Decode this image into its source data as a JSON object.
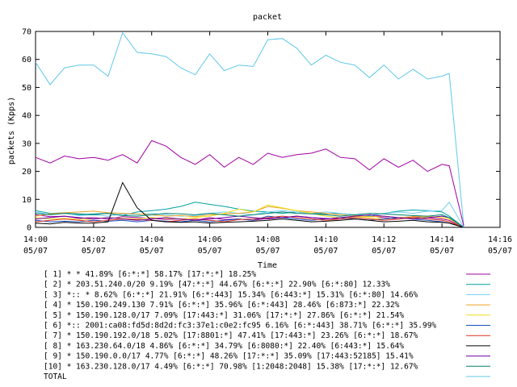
{
  "chart_data": {
    "type": "line",
    "title": "packet",
    "xlabel": "Time",
    "ylabel": "packets (Kpps)",
    "ylim": [
      0,
      70
    ],
    "y_ticks": [
      "0",
      "10",
      "20",
      "30",
      "40",
      "50",
      "60",
      "70"
    ],
    "x_ticks": [
      {
        "time": "14:00",
        "date": "05/07"
      },
      {
        "time": "14:02",
        "date": "05/07"
      },
      {
        "time": "14:04",
        "date": "05/07"
      },
      {
        "time": "14:06",
        "date": "05/07"
      },
      {
        "time": "14:08",
        "date": "05/07"
      },
      {
        "time": "14:10",
        "date": "05/07"
      },
      {
        "time": "14:12",
        "date": "05/07"
      },
      {
        "time": "14:14",
        "date": "05/07"
      },
      {
        "time": "14:16",
        "date": "05/07"
      }
    ],
    "x_range_minutes": [
      0,
      16
    ],
    "x_minutes": [
      0,
      0.5,
      1,
      1.5,
      2,
      2.5,
      3,
      3.5,
      4,
      4.5,
      5,
      5.5,
      6,
      6.5,
      7,
      7.5,
      8,
      8.5,
      9,
      9.5,
      10,
      10.5,
      11,
      11.5,
      12,
      12.5,
      13,
      13.5,
      14,
      14.25,
      14.75
    ],
    "series": [
      {
        "name": "[ 1] * * 41.89%  [6:*:*] 58.17% [17:*:*] 18.25%",
        "color": "#a000a0",
        "values": [
          4.5,
          3.8,
          4.0,
          3.2,
          3.5,
          3.0,
          3.8,
          3.5,
          3.2,
          2.8,
          3.0,
          2.5,
          3.5,
          2.8,
          3.0,
          2.5,
          3.2,
          3.5,
          4.0,
          3.5,
          3.2,
          3.0,
          3.8,
          4.2,
          3.5,
          3.0,
          3.8,
          3.5,
          3.0,
          2.5,
          0
        ]
      },
      {
        "name": "[ 2] * 203.51.240.0/20 9.19%  [47:*:*] 44.67% [6:*:*] 22.90% [6:*:80] 12.33%",
        "color": "#00a0a0",
        "values": [
          6.0,
          5.0,
          5.2,
          4.5,
          4.8,
          5.0,
          4.2,
          5.5,
          6.0,
          6.5,
          7.5,
          9.0,
          8.2,
          7.5,
          6.5,
          5.8,
          5.5,
          5.0,
          5.5,
          5.0,
          4.8,
          5.0,
          4.5,
          4.2,
          5.0,
          5.8,
          6.2,
          6.0,
          5.5,
          4.0,
          0
        ]
      },
      {
        "name": "[ 3] *:: * 8.62%  [6:*:*] 21.91% [6:*:443] 15.34% [6:443:*] 15.31% [6:*:80] 14.66%",
        "color": "#6fd0f0",
        "values": [
          5.5,
          4.5,
          5.0,
          4.2,
          4.5,
          4.0,
          4.8,
          4.5,
          5.0,
          4.5,
          4.0,
          4.2,
          5.0,
          5.5,
          5.0,
          4.5,
          5.5,
          6.0,
          5.5,
          5.0,
          5.5,
          5.0,
          4.5,
          4.0,
          5.0,
          5.5,
          5.0,
          5.8,
          6.0,
          9.0,
          0
        ]
      },
      {
        "name": "[ 4] * 150.190.249.130 7.91%  [6:*:*] 35.96% [6:*:443] 28.46% [6:873:*] 22.32%",
        "color": "#f0a020",
        "values": [
          4.0,
          4.8,
          5.2,
          5.5,
          5.8,
          5.2,
          5.0,
          4.8,
          4.5,
          4.0,
          4.2,
          3.8,
          4.5,
          4.8,
          5.0,
          5.5,
          7.5,
          6.8,
          6.0,
          5.5,
          5.0,
          4.5,
          4.2,
          3.8,
          4.0,
          3.5,
          3.8,
          4.0,
          3.5,
          3.0,
          0
        ]
      },
      {
        "name": "[ 5] * 150.190.128.0/17 7.09%  [17:443:*] 31.06% [17:*:*] 27.86% [6:*:*] 21.54%",
        "color": "#f0e020",
        "values": [
          3.5,
          3.0,
          3.2,
          2.8,
          3.0,
          3.5,
          3.2,
          3.0,
          3.5,
          3.2,
          3.0,
          3.5,
          4.0,
          5.0,
          6.5,
          5.5,
          8.0,
          7.0,
          6.0,
          5.0,
          4.0,
          3.5,
          3.8,
          3.5,
          3.0,
          3.5,
          3.2,
          3.8,
          3.5,
          3.0,
          0
        ]
      },
      {
        "name": "[ 6] *:: 2001:ca08:fd5d:8d2d:fc3:37e1:c0e2:fc95 6.16%  [6:*:443] 38.71% [6:*:*] 35.99%",
        "color": "#1050c0",
        "values": [
          2.5,
          2.0,
          2.2,
          2.0,
          2.5,
          2.2,
          2.5,
          2.0,
          2.5,
          2.2,
          2.0,
          2.5,
          2.0,
          2.5,
          3.0,
          2.5,
          4.0,
          3.5,
          3.0,
          2.5,
          3.0,
          3.5,
          3.0,
          2.5,
          3.0,
          3.5,
          3.0,
          2.5,
          2.0,
          1.5,
          0
        ]
      },
      {
        "name": "[ 7] * 150.190.192.0/18 5.02%  [17:8801:*] 47.41% [17:443:*] 23.26% [6:*:*] 18.67%",
        "color": "#e03020",
        "values": [
          2.0,
          2.5,
          3.0,
          2.5,
          2.0,
          2.5,
          3.0,
          2.8,
          2.5,
          2.0,
          2.5,
          3.0,
          2.5,
          2.0,
          2.8,
          3.0,
          3.5,
          4.0,
          3.5,
          3.0,
          2.5,
          3.0,
          3.5,
          3.0,
          2.5,
          3.0,
          3.5,
          3.0,
          2.5,
          2.0,
          0
        ]
      },
      {
        "name": "[ 8] * 163.230.64.0/18 4.86%  [6:*:*] 34.79% [6:8080:*] 22.40% [6:443:*] 15.64%",
        "color": "#000000",
        "values": [
          1.5,
          1.2,
          1.8,
          1.5,
          1.5,
          2.0,
          16.0,
          7.0,
          2.5,
          2.0,
          1.8,
          2.0,
          1.5,
          1.8,
          2.0,
          2.2,
          2.5,
          3.0,
          2.5,
          2.0,
          2.2,
          2.5,
          3.0,
          2.5,
          2.0,
          2.2,
          2.5,
          2.0,
          1.8,
          1.5,
          0
        ]
      },
      {
        "name": "[ 9] * 150.190.0.0/17 4.77%  [6:*:*] 48.26% [17:*:*] 35.09% [17:443:52185] 15.41%",
        "color": "#7000a0",
        "values": [
          3.0,
          3.5,
          4.0,
          3.5,
          3.0,
          3.5,
          3.0,
          2.5,
          3.0,
          3.5,
          3.0,
          2.5,
          3.0,
          3.5,
          4.0,
          3.5,
          3.0,
          3.5,
          4.0,
          3.5,
          3.0,
          3.5,
          4.0,
          4.5,
          4.0,
          3.5,
          3.0,
          3.5,
          4.0,
          3.5,
          0
        ]
      },
      {
        "name": "[10] * 163.230.128.0/17 4.49%  [6:*:*] 70.98% [1:2048:2048] 15.38% [17:*:*] 12.67%",
        "color": "#008070",
        "values": [
          5.0,
          4.5,
          5.0,
          4.8,
          4.5,
          5.0,
          4.2,
          4.0,
          4.5,
          5.0,
          4.8,
          4.5,
          5.0,
          4.5,
          4.0,
          4.5,
          5.0,
          5.5,
          5.0,
          4.8,
          4.5,
          4.0,
          4.5,
          5.0,
          4.8,
          4.5,
          4.2,
          4.0,
          4.5,
          3.5,
          0
        ]
      },
      {
        "name": "TOTAL",
        "color": "#60c8e8",
        "values": [
          59,
          51,
          57,
          58,
          58,
          54,
          69.5,
          62.5,
          62,
          61,
          57,
          54.5,
          62,
          56,
          58,
          57.5,
          67,
          67.5,
          64,
          58,
          61.5,
          59,
          58,
          53.5,
          58,
          53,
          56.5,
          53,
          54,
          55,
          0.5
        ]
      },
      {
        "name": "",
        "color": "#a000a0",
        "no_legend": true,
        "values": [
          25,
          23,
          25.5,
          24.5,
          25,
          24,
          26,
          23,
          31,
          29,
          25,
          22.5,
          26,
          21.5,
          25,
          22.5,
          26.5,
          25,
          26,
          26.5,
          28,
          25,
          24.5,
          20.5,
          24.5,
          21.5,
          24,
          20,
          22.5,
          22,
          0.5
        ]
      }
    ]
  }
}
